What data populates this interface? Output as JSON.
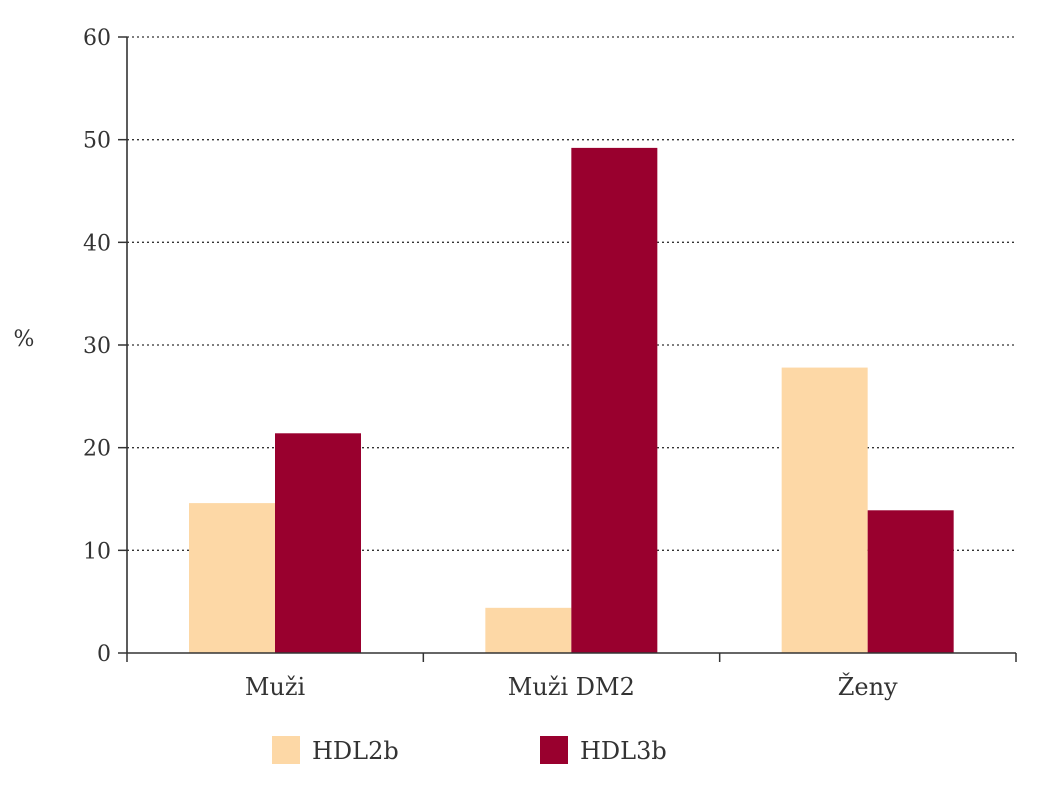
{
  "chart_data": {
    "type": "bar",
    "title": "",
    "xlabel": "",
    "ylabel": "%",
    "ylim": [
      0,
      60
    ],
    "yticks": [
      0,
      10,
      20,
      30,
      40,
      50,
      60
    ],
    "grid": true,
    "legend_position": "bottom",
    "categories": [
      "Muži",
      "Muži DM2",
      "Ženy"
    ],
    "series": [
      {
        "name": "HDL2b",
        "color": "#fdd8a6",
        "values": [
          14.6,
          4.4,
          27.8
        ]
      },
      {
        "name": "HDL3b",
        "color": "#99002e",
        "values": [
          21.4,
          49.2,
          13.9
        ]
      }
    ]
  }
}
